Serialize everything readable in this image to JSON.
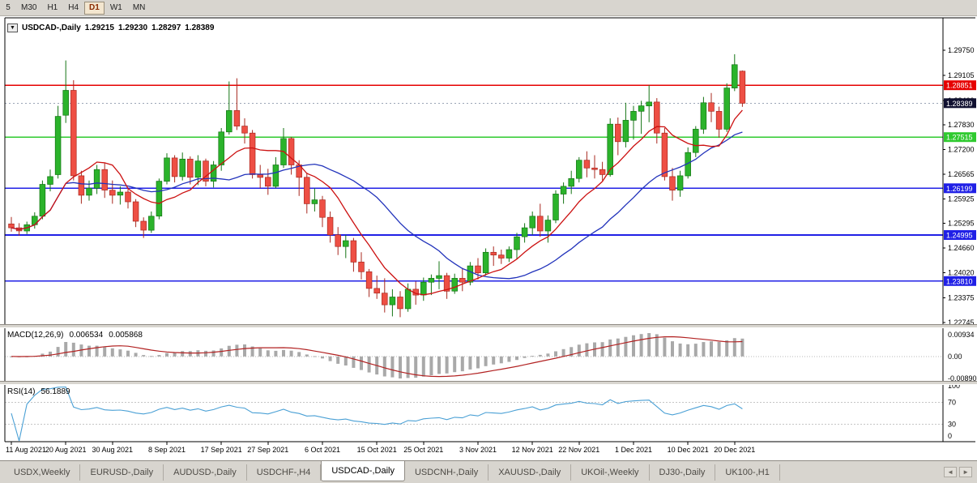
{
  "toolbar": {
    "timeframes": [
      "5",
      "M30",
      "H1",
      "H4",
      "D1",
      "W1",
      "MN"
    ],
    "active": "D1"
  },
  "chart_header": {
    "dropdown_icon": "▼",
    "symbol": "USDCAD-,Daily",
    "open": "1.29215",
    "high": "1.29230",
    "low": "1.28297",
    "close": "1.28389"
  },
  "indicators": {
    "macd_label": {
      "name": "MACD(12,26,9)",
      "main_value": "0.006534",
      "signal_value": "0.005868"
    },
    "rsi_label": {
      "name": "RSI(14)",
      "value": "56.1889"
    }
  },
  "chart_data": {
    "type": "candlestick",
    "symbol": "USDCAD",
    "timeframe": "Daily",
    "price_scale": {
      "top": 1.3042,
      "bottom": 1.227
    },
    "price_axis_ticks": [
      "1.29750",
      "1.29105",
      "1.28460",
      "1.27830",
      "1.27200",
      "1.26565",
      "1.25925",
      "1.25295",
      "1.24660",
      "1.24020",
      "1.23375",
      "1.22745"
    ],
    "current_price": {
      "value": "1.28389",
      "bg": "#101030",
      "text_color": "#ffffff",
      "line_color": "#9aa4b5"
    },
    "hlines": [
      {
        "price": 1.28851,
        "label": "1.28851",
        "color": "#e60000",
        "stroke_width": 1.4
      },
      {
        "price": 1.27515,
        "label": "1.27515",
        "color": "#2fca2f",
        "stroke_width": 1.8
      },
      {
        "price": 1.26199,
        "label": "1.26199",
        "color": "#2020e6",
        "stroke_width": 1.8
      },
      {
        "price": 1.24995,
        "label": "1.24995",
        "color": "#2020e6",
        "stroke_width": 1.8
      },
      {
        "price": 1.2381,
        "label": "1.23810",
        "color": "#2020e6",
        "stroke_width": 1.8
      }
    ],
    "colors": {
      "bull": "#2bb32b",
      "bull_border": "#157515",
      "bear": "#ee4f44",
      "bear_border": "#a8281f",
      "frame": "#000000",
      "axis_text": "#000000"
    },
    "moving_averages": [
      {
        "period": 21,
        "color": "#2233bb"
      },
      {
        "period": 8,
        "color": "#cc1111"
      }
    ],
    "macd": {
      "fast": 12,
      "slow": 26,
      "signal": 9,
      "histogram_color": "#a9a9a9",
      "signal_color": "#b22222",
      "axis_labels": [
        "0.00934",
        "0.00",
        "-0.00890"
      ]
    },
    "rsi": {
      "period": 14,
      "color": "#4aa0d5",
      "levels": [
        30,
        70
      ],
      "axis_labels": [
        "100",
        "70",
        "30",
        "0"
      ]
    },
    "x_labels": [
      "11 Aug 2021",
      "20 Aug 2021",
      "30 Aug 2021",
      "8 Sep 2021",
      "17 Sep 2021",
      "27 Sep 2021",
      "6 Oct 2021",
      "15 Oct 2021",
      "25 Oct 2021",
      "3 Nov 2021",
      "12 Nov 2021",
      "22 Nov 2021",
      "1 Dec 2021",
      "10 Dec 2021",
      "20 Dec 2021"
    ],
    "x_label_indices": [
      0,
      7,
      13,
      20,
      27,
      33,
      40,
      47,
      53,
      60,
      67,
      73,
      80,
      87,
      93
    ],
    "candles": [
      [
        1.2528,
        1.2546,
        1.2508,
        1.2518
      ],
      [
        1.2518,
        1.253,
        1.2498,
        1.251
      ],
      [
        1.251,
        1.2534,
        1.2502,
        1.2526
      ],
      [
        1.2526,
        1.2558,
        1.2516,
        1.2548
      ],
      [
        1.2548,
        1.264,
        1.254,
        1.263
      ],
      [
        1.263,
        1.2668,
        1.2612,
        1.265
      ],
      [
        1.2655,
        1.2832,
        1.2645,
        1.2805
      ],
      [
        1.2808,
        1.2949,
        1.2788,
        1.2872
      ],
      [
        1.2872,
        1.2898,
        1.264,
        1.2652
      ],
      [
        1.2652,
        1.2665,
        1.258,
        1.2602
      ],
      [
        1.2602,
        1.264,
        1.2588,
        1.262
      ],
      [
        1.262,
        1.268,
        1.2605,
        1.2668
      ],
      [
        1.2668,
        1.2685,
        1.2595,
        1.2615
      ],
      [
        1.2615,
        1.264,
        1.258,
        1.2602
      ],
      [
        1.2602,
        1.2625,
        1.2578,
        1.261
      ],
      [
        1.261,
        1.2618,
        1.2568,
        1.2585
      ],
      [
        1.2585,
        1.2592,
        1.252,
        1.2535
      ],
      [
        1.2535,
        1.2545,
        1.2492,
        1.2512
      ],
      [
        1.2512,
        1.256,
        1.2505,
        1.2548
      ],
      [
        1.2548,
        1.2645,
        1.254,
        1.2638
      ],
      [
        1.2638,
        1.271,
        1.263,
        1.2698
      ],
      [
        1.2698,
        1.2705,
        1.2635,
        1.265
      ],
      [
        1.265,
        1.2712,
        1.264,
        1.2695
      ],
      [
        1.2695,
        1.2702,
        1.263,
        1.2648
      ],
      [
        1.2648,
        1.2705,
        1.2628,
        1.269
      ],
      [
        1.269,
        1.2696,
        1.2625,
        1.2638
      ],
      [
        1.2638,
        1.269,
        1.2622,
        1.268
      ],
      [
        1.268,
        1.2775,
        1.2665,
        1.2765
      ],
      [
        1.2765,
        1.2895,
        1.2758,
        1.282
      ],
      [
        1.282,
        1.2903,
        1.277,
        1.278
      ],
      [
        1.278,
        1.28,
        1.2735,
        1.2762
      ],
      [
        1.2762,
        1.277,
        1.2645,
        1.2655
      ],
      [
        1.2655,
        1.268,
        1.262,
        1.2648
      ],
      [
        1.2648,
        1.267,
        1.2603,
        1.2625
      ],
      [
        1.2625,
        1.27,
        1.262,
        1.268
      ],
      [
        1.268,
        1.2775,
        1.2672,
        1.2748
      ],
      [
        1.2748,
        1.2752,
        1.2655,
        1.268
      ],
      [
        1.268,
        1.2692,
        1.26,
        1.2648
      ],
      [
        1.2648,
        1.266,
        1.2555,
        1.258
      ],
      [
        1.258,
        1.262,
        1.256,
        1.259
      ],
      [
        1.259,
        1.26,
        1.252,
        1.2545
      ],
      [
        1.2545,
        1.256,
        1.248,
        1.25
      ],
      [
        1.25,
        1.252,
        1.2448,
        1.247
      ],
      [
        1.247,
        1.25,
        1.244,
        1.2485
      ],
      [
        1.2485,
        1.2492,
        1.2405,
        1.243
      ],
      [
        1.243,
        1.2455,
        1.2385,
        1.2405
      ],
      [
        1.2405,
        1.2412,
        1.234,
        1.2362
      ],
      [
        1.2362,
        1.2395,
        1.2335,
        1.235
      ],
      [
        1.235,
        1.2388,
        1.23,
        1.232
      ],
      [
        1.232,
        1.236,
        1.229,
        1.234
      ],
      [
        1.234,
        1.2355,
        1.2288,
        1.231
      ],
      [
        1.231,
        1.2375,
        1.2302,
        1.236
      ],
      [
        1.236,
        1.238,
        1.232,
        1.2345
      ],
      [
        1.2345,
        1.239,
        1.233,
        1.2378
      ],
      [
        1.2378,
        1.2398,
        1.2345,
        1.2388
      ],
      [
        1.2388,
        1.2432,
        1.236,
        1.2395
      ],
      [
        1.2395,
        1.2402,
        1.2335,
        1.2355
      ],
      [
        1.2355,
        1.24,
        1.2348,
        1.2388
      ],
      [
        1.2388,
        1.2415,
        1.2355,
        1.2378
      ],
      [
        1.2378,
        1.243,
        1.237,
        1.242
      ],
      [
        1.242,
        1.244,
        1.2385,
        1.2402
      ],
      [
        1.2402,
        1.2465,
        1.2395,
        1.2455
      ],
      [
        1.2455,
        1.247,
        1.242,
        1.2448
      ],
      [
        1.2448,
        1.2462,
        1.2425,
        1.244
      ],
      [
        1.244,
        1.247,
        1.243,
        1.2462
      ],
      [
        1.2462,
        1.2505,
        1.2438,
        1.2495
      ],
      [
        1.2495,
        1.253,
        1.248,
        1.2518
      ],
      [
        1.2518,
        1.256,
        1.25,
        1.2548
      ],
      [
        1.2548,
        1.258,
        1.2495,
        1.251
      ],
      [
        1.251,
        1.255,
        1.248,
        1.2538
      ],
      [
        1.2538,
        1.2615,
        1.253,
        1.2605
      ],
      [
        1.2605,
        1.2635,
        1.258,
        1.2625
      ],
      [
        1.2625,
        1.2665,
        1.2605,
        1.2645
      ],
      [
        1.2645,
        1.27,
        1.2635,
        1.2692
      ],
      [
        1.2692,
        1.2715,
        1.2648,
        1.2672
      ],
      [
        1.2672,
        1.2705,
        1.2645,
        1.2668
      ],
      [
        1.2668,
        1.2688,
        1.264,
        1.2655
      ],
      [
        1.2655,
        1.28,
        1.265,
        1.2785
      ],
      [
        1.2785,
        1.2802,
        1.2705,
        1.274
      ],
      [
        1.274,
        1.284,
        1.2725,
        1.2795
      ],
      [
        1.2795,
        1.2832,
        1.2745,
        1.2818
      ],
      [
        1.2818,
        1.2845,
        1.276,
        1.2832
      ],
      [
        1.2832,
        1.2885,
        1.279,
        1.2842
      ],
      [
        1.2842,
        1.2852,
        1.2735,
        1.2762
      ],
      [
        1.2762,
        1.2775,
        1.264,
        1.265
      ],
      [
        1.265,
        1.2672,
        1.2588,
        1.2615
      ],
      [
        1.2615,
        1.2665,
        1.2598,
        1.2652
      ],
      [
        1.2652,
        1.2725,
        1.2645,
        1.2712
      ],
      [
        1.2712,
        1.278,
        1.27,
        1.2772
      ],
      [
        1.2772,
        1.2855,
        1.276,
        1.284
      ],
      [
        1.284,
        1.2865,
        1.279,
        1.2818
      ],
      [
        1.2818,
        1.283,
        1.275,
        1.2772
      ],
      [
        1.2772,
        1.289,
        1.2765,
        1.2878
      ],
      [
        1.2878,
        1.2965,
        1.287,
        1.2938
      ],
      [
        1.29215,
        1.2923,
        1.28297,
        1.28389
      ]
    ]
  },
  "tabs": {
    "items": [
      "USDX,Weekly",
      "EURUSD-,Daily",
      "AUDUSD-,Daily",
      "USDCHF-,H4",
      "USDCAD-,Daily",
      "USDCNH-,Daily",
      "XAUUSD-,Daily",
      "UKOil-,Weekly",
      "DJ30-,Daily",
      "UK100-,H1"
    ],
    "active": "USDCAD-,Daily",
    "scroll_left": "◄",
    "scroll_right": "►"
  }
}
